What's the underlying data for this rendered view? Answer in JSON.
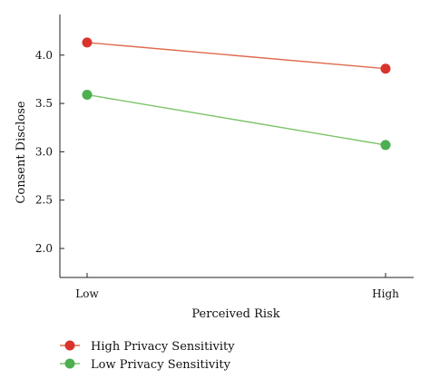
{
  "chart_data": {
    "type": "line",
    "xlabel": "Perceived Risk",
    "ylabel": "Consent Disclose",
    "categories": [
      "Low",
      "High"
    ],
    "ylim": [
      1.7,
      4.42
    ],
    "yticks": [
      "2.0",
      "2.5",
      "3.0",
      "3.5",
      "4.0"
    ],
    "grid": false,
    "legend_position": "bottom-left",
    "series": [
      {
        "name": "High Privacy Sensitivity",
        "values": [
          4.13,
          3.86
        ],
        "color": "#d9342b",
        "line_color": "#e06a4e"
      },
      {
        "name": "Low Privacy Sensitivity",
        "values": [
          3.59,
          3.07
        ],
        "color": "#4caf50",
        "line_color": "#7bc46a"
      }
    ]
  }
}
